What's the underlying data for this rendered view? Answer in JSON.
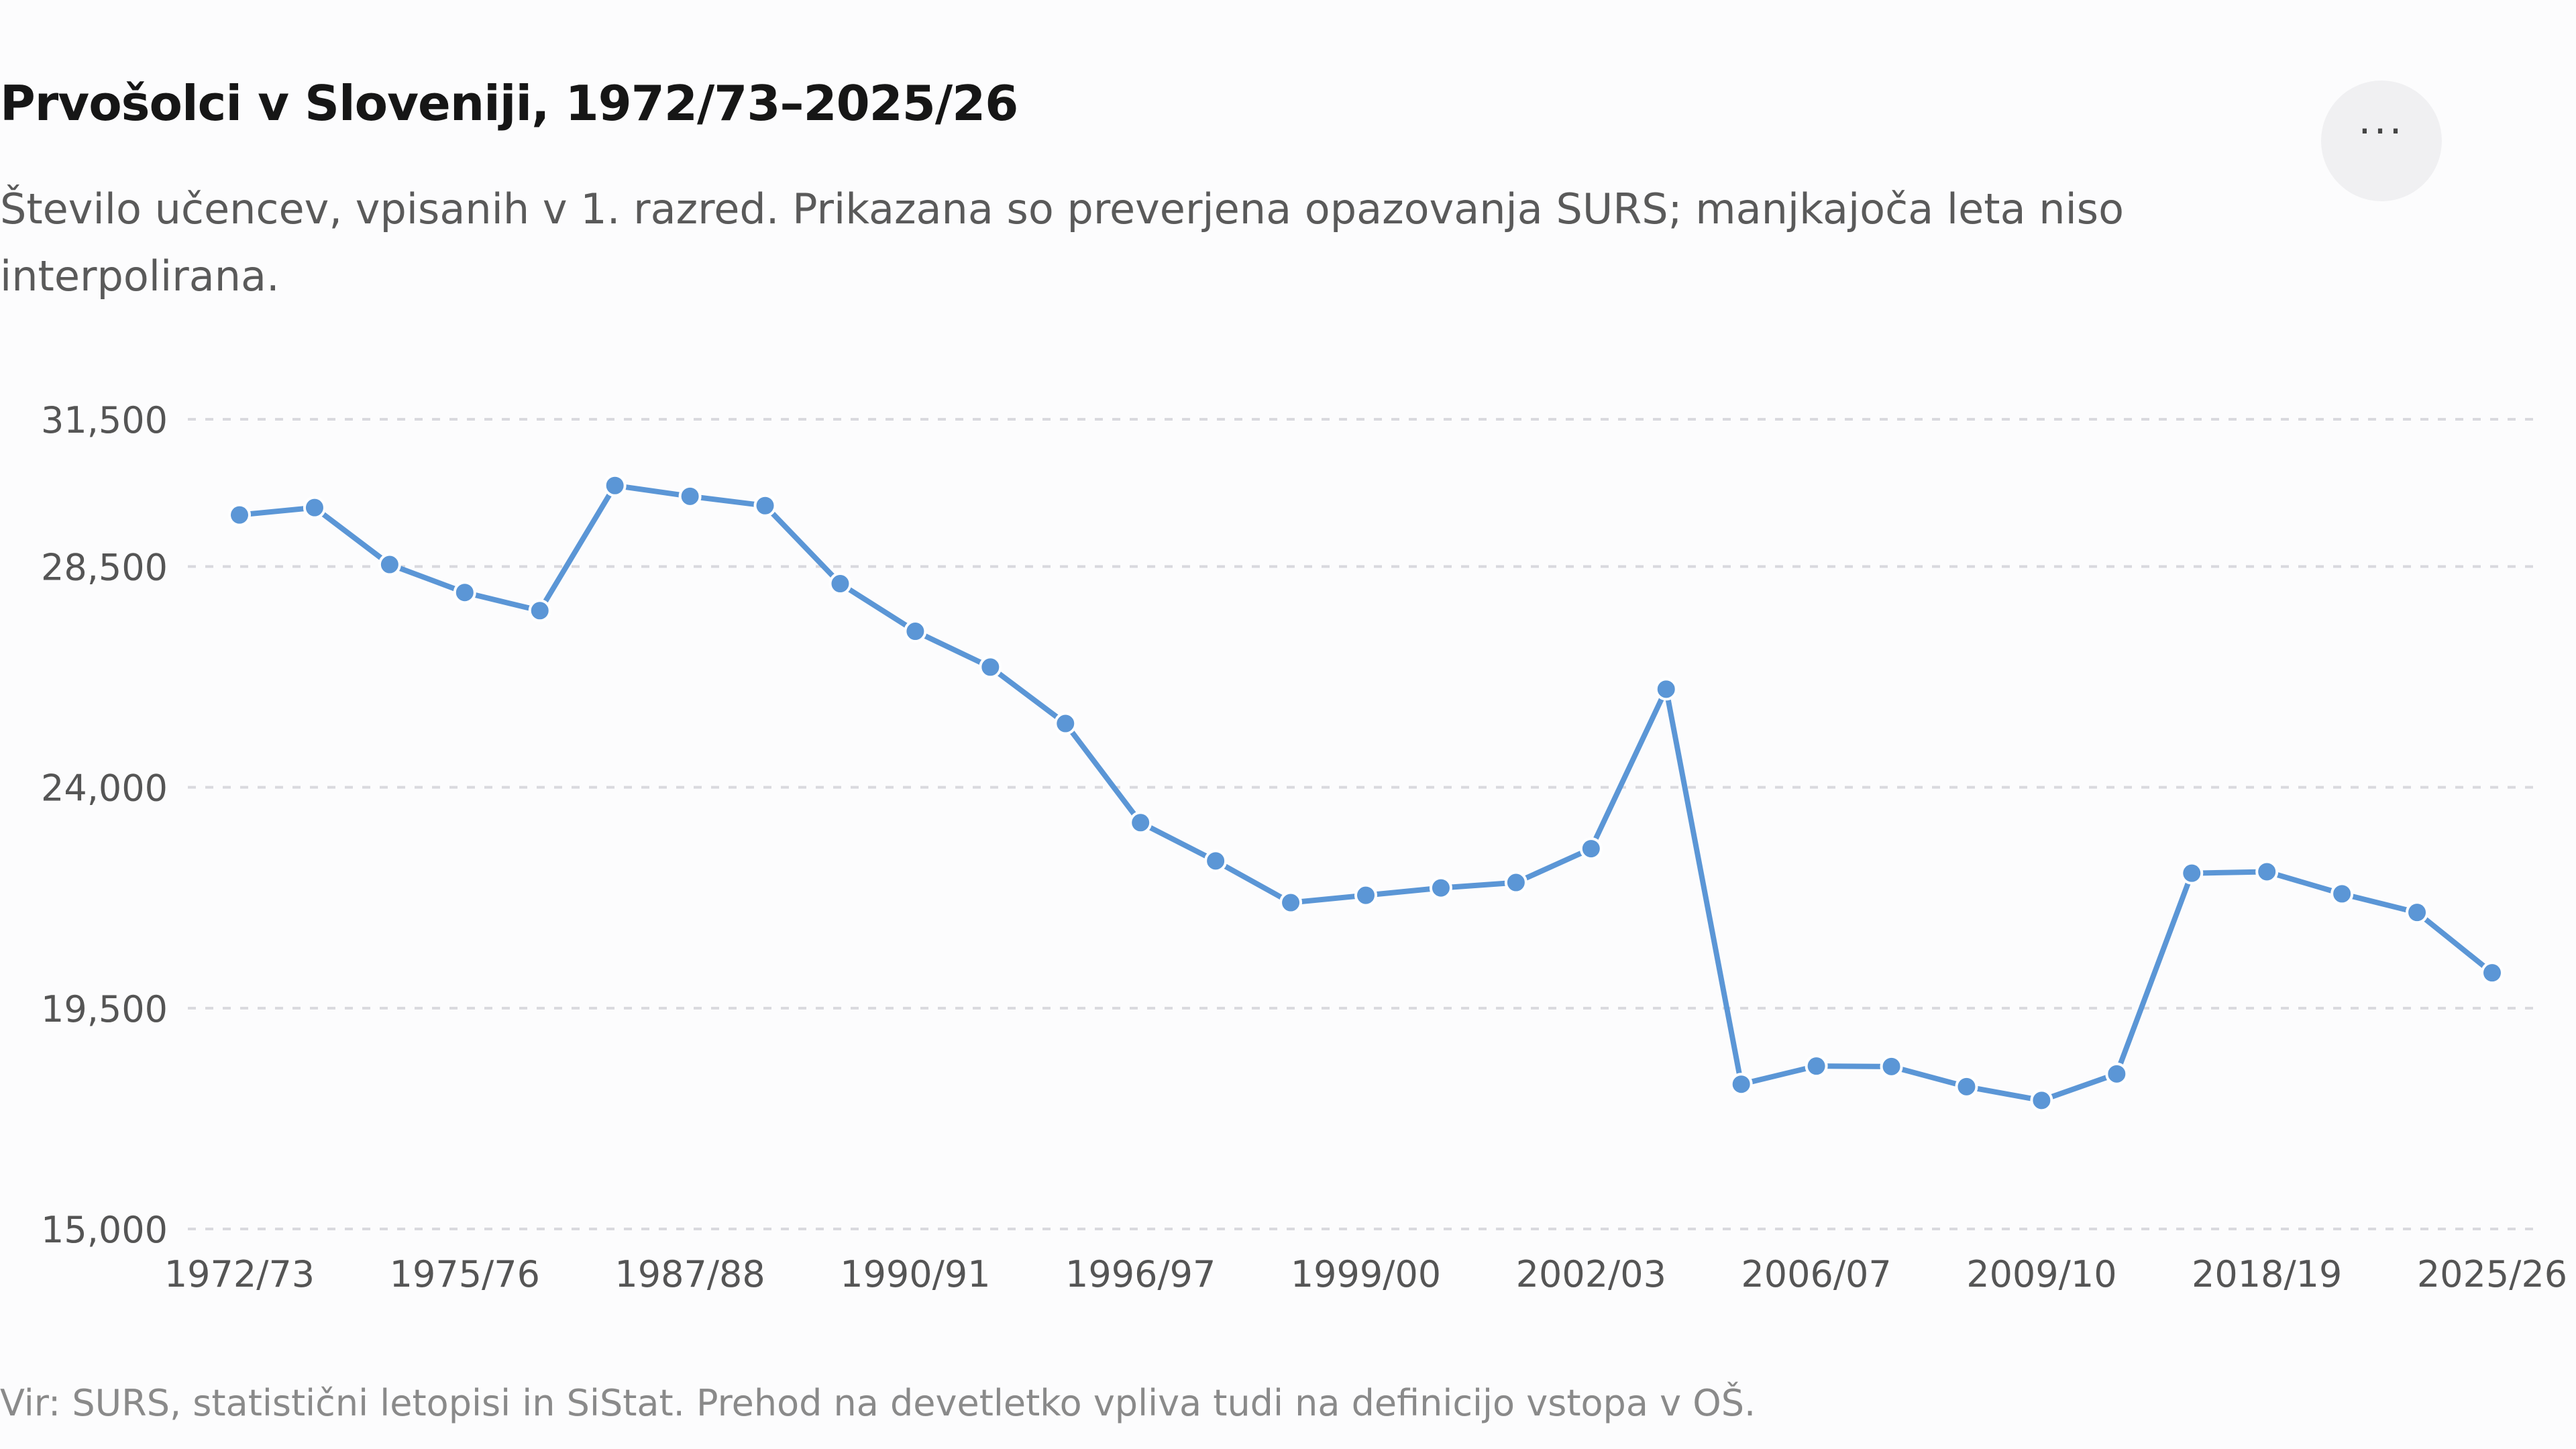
{
  "header": {
    "title": "Prvošolci v Sloveniji, 1972/73–2025/26",
    "subtitle": "Število učencev, vpisanih v 1. razred. Prikazana so preverjena opazovanja SURS; manjkajoča leta niso interpolirana.",
    "menu_icon": "more-horizontal-icon"
  },
  "footer": {
    "source": "Vir: SURS, statistični letopisi in SiStat. Prehod na devetletko vpliva tudi na definicijo vstopa v OŠ."
  },
  "colors": {
    "line": "#5b96d6",
    "grid": "#d9d9de",
    "tick_text": "#555555"
  },
  "chart_data": {
    "type": "line",
    "y_ticks": [
      15000,
      19500,
      24000,
      28500,
      31500
    ],
    "y_tick_labels": [
      "15,000",
      "19,500",
      "24,000",
      "28,500",
      "31,500"
    ],
    "ylim": [
      15000,
      31500
    ],
    "grid": true,
    "x_tick_labels": [
      {
        "index": 0,
        "label": "1972/73"
      },
      {
        "index": 3,
        "label": "1975/76"
      },
      {
        "index": 6,
        "label": "1987/88"
      },
      {
        "index": 9,
        "label": "1990/91"
      },
      {
        "index": 12,
        "label": "1996/97"
      },
      {
        "index": 15,
        "label": "1999/00"
      },
      {
        "index": 18,
        "label": "2002/03"
      },
      {
        "index": 21,
        "label": "2006/07"
      },
      {
        "index": 24,
        "label": "2009/10"
      },
      {
        "index": 27,
        "label": "2018/19"
      },
      {
        "index": 30,
        "label": "2025/26"
      }
    ],
    "series": [
      {
        "values": [
          29550,
          29700,
          28540,
          27970,
          27600,
          30150,
          29930,
          29740,
          28150,
          27180,
          26450,
          25300,
          23280,
          22500,
          21650,
          21800,
          21950,
          22060,
          22750,
          26000,
          17950,
          18320,
          18310,
          17900,
          17620,
          18160,
          22250,
          22280,
          21830,
          21450,
          20220
        ]
      }
    ]
  }
}
